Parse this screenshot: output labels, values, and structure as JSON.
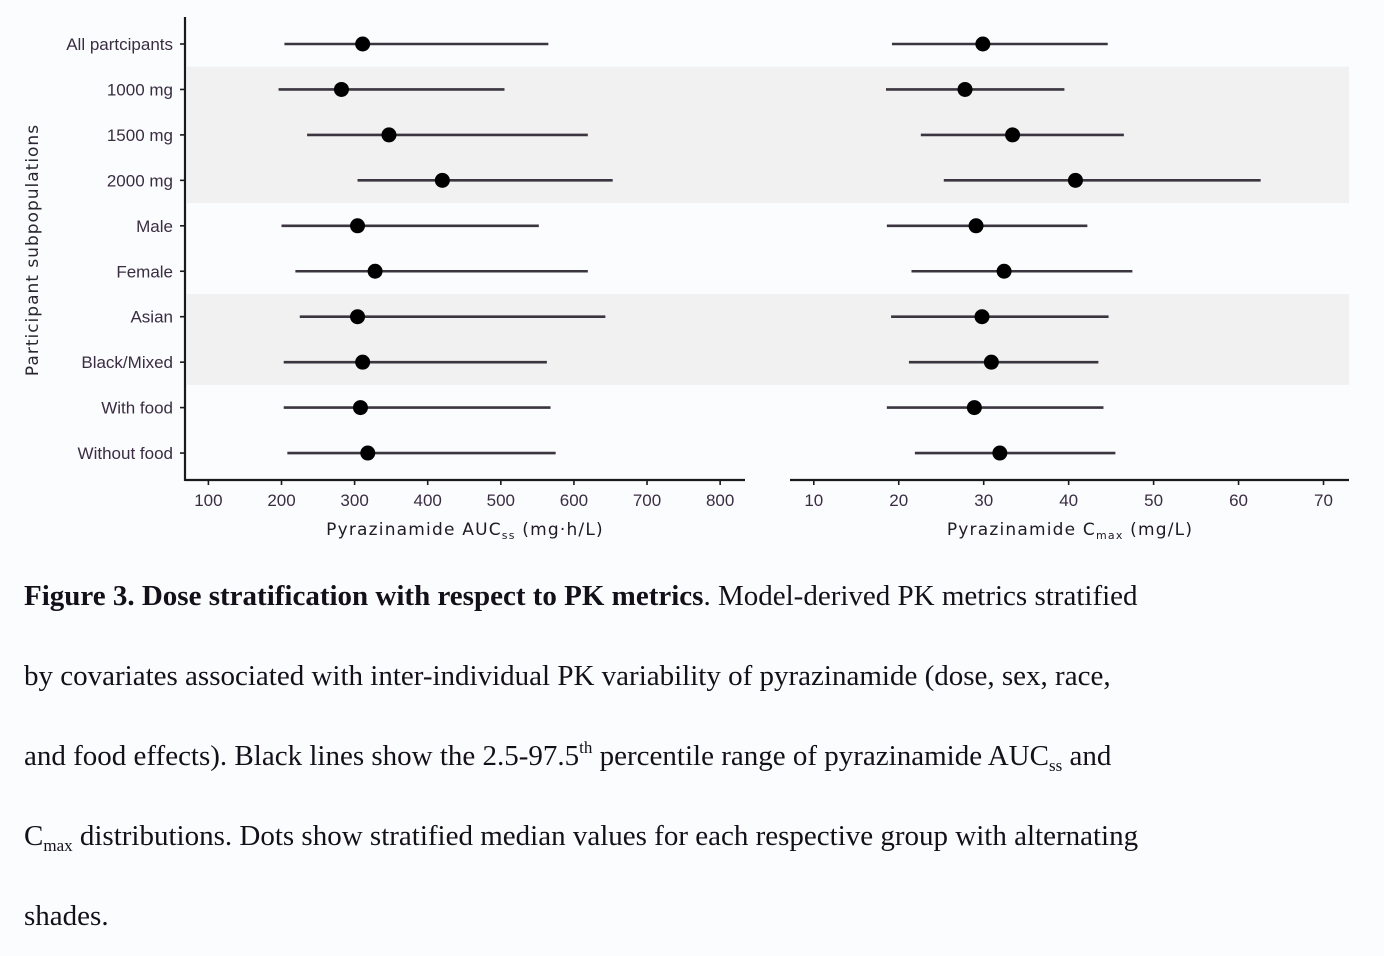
{
  "chart_data": [
    {
      "type": "forest",
      "panel": "left",
      "xlabel": "Pyrazinamide AUC",
      "xlabel_sub": "ss",
      "xlabel_unit": " (mg·h/L)",
      "ylabel": "Participant subpopulations",
      "xlim": [
        68,
        834
      ],
      "xticks": [
        100,
        200,
        300,
        400,
        500,
        600,
        700,
        800
      ],
      "xtick_labels": [
        "100",
        "200",
        "300",
        "400",
        "500",
        "600",
        "700",
        "800"
      ],
      "categories": [
        "All partcipants",
        "1000 mg",
        "1500 mg",
        "2000 mg",
        "Male",
        "Female",
        "Asian",
        "Black/Mixed",
        "With food",
        "Without food"
      ],
      "median": [
        311,
        282,
        347,
        420,
        304,
        328,
        304,
        311,
        308,
        318
      ],
      "lower_2_5": [
        204,
        196,
        235,
        304,
        200,
        219,
        225,
        203,
        203,
        208
      ],
      "upper_97_5": [
        565,
        505,
        619,
        653,
        552,
        619,
        643,
        563,
        568,
        575
      ],
      "shaded_rows": [
        [
          1,
          3
        ],
        [
          6,
          7
        ]
      ],
      "grid": false
    },
    {
      "type": "forest",
      "panel": "right",
      "xlabel": "Pyrazinamide C",
      "xlabel_sub": "max",
      "xlabel_unit": " (mg/L)",
      "xlim": [
        7.2,
        73.0
      ],
      "xticks": [
        10,
        20,
        30,
        40,
        50,
        60,
        70
      ],
      "xtick_labels": [
        "10",
        "20",
        "30",
        "40",
        "50",
        "60",
        "70"
      ],
      "categories": [
        "All partcipants",
        "1000 mg",
        "1500 mg",
        "2000 mg",
        "Male",
        "Female",
        "Asian",
        "Black/Mixed",
        "With food",
        "Without food"
      ],
      "median": [
        29.9,
        27.8,
        33.4,
        40.8,
        29.1,
        32.4,
        29.8,
        30.9,
        28.9,
        31.9
      ],
      "lower_2_5": [
        19.2,
        18.5,
        22.6,
        25.3,
        18.6,
        21.5,
        19.1,
        21.2,
        18.6,
        21.9
      ],
      "upper_97_5": [
        44.6,
        39.5,
        46.5,
        62.6,
        42.2,
        47.5,
        44.7,
        43.5,
        44.1,
        45.5
      ],
      "shaded_rows": [
        [
          1,
          3
        ],
        [
          6,
          7
        ]
      ],
      "grid": false
    }
  ],
  "colors": {
    "line": "#3b3540",
    "dot": "#000000",
    "shade": "#f1f1f1",
    "axis": "#1a1a1a",
    "text": "#3a2d42"
  },
  "caption": {
    "bold": "Figure 3. Dose stratification with respect to PK metrics",
    "l1_rest": ". Model-derived PK metrics stratified",
    "l2": "by covariates associated with inter-individual PK variability of pyrazinamide (dose, sex, race,",
    "l3_a": "and food effects). Black lines show the 2.5-97.5",
    "l3_sup": "th",
    "l3_b": " percentile range of pyrazinamide AUC",
    "l3_sub": "ss",
    "l3_c": " and",
    "l4_a": "C",
    "l4_sub": "max",
    "l4_b": " distributions. Dots show stratified median values for each respective group with alternating",
    "l5": "shades."
  }
}
